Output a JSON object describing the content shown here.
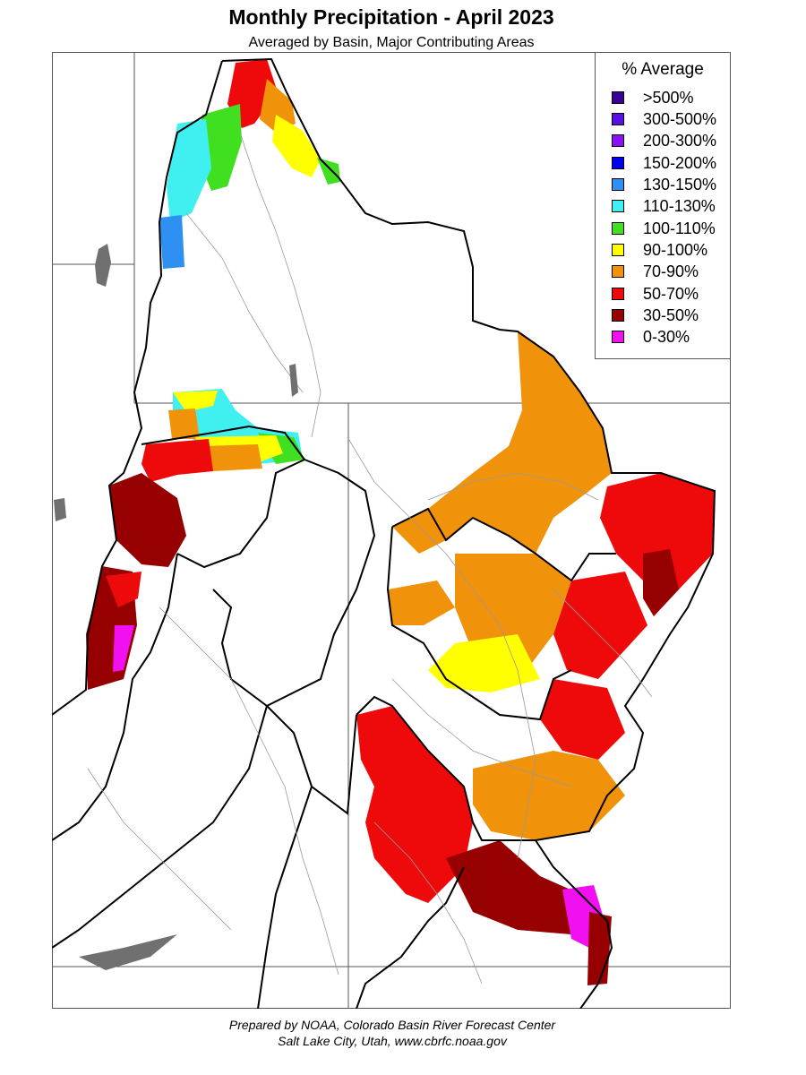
{
  "title": "Monthly Precipitation - April 2023",
  "subtitle": "Averaged by Basin, Major Contributing Areas",
  "legend": {
    "title": "% Average",
    "items": [
      {
        "label": ">500%",
        "color": "#3a0095"
      },
      {
        "label": "300-500%",
        "color": "#5a10e0"
      },
      {
        "label": "200-300%",
        "color": "#8a10f8"
      },
      {
        "label": "150-200%",
        "color": "#0000f0"
      },
      {
        "label": "130-150%",
        "color": "#2e90f0"
      },
      {
        "label": "110-130%",
        "color": "#40f0f0"
      },
      {
        "label": "100-110%",
        "color": "#40e020"
      },
      {
        "label": "90-100%",
        "color": "#ffff00"
      },
      {
        "label": "70-90%",
        "color": "#f0920a"
      },
      {
        "label": "50-70%",
        "color": "#ee0a0a"
      },
      {
        "label": "30-50%",
        "color": "#960000"
      },
      {
        "label": "0-30%",
        "color": "#f010f0"
      }
    ]
  },
  "credit": {
    "line1": "Prepared by NOAA, Colorado Basin River Forecast Center",
    "line2": "Salt Lake City, Utah, www.cbrfc.noaa.gov"
  }
}
